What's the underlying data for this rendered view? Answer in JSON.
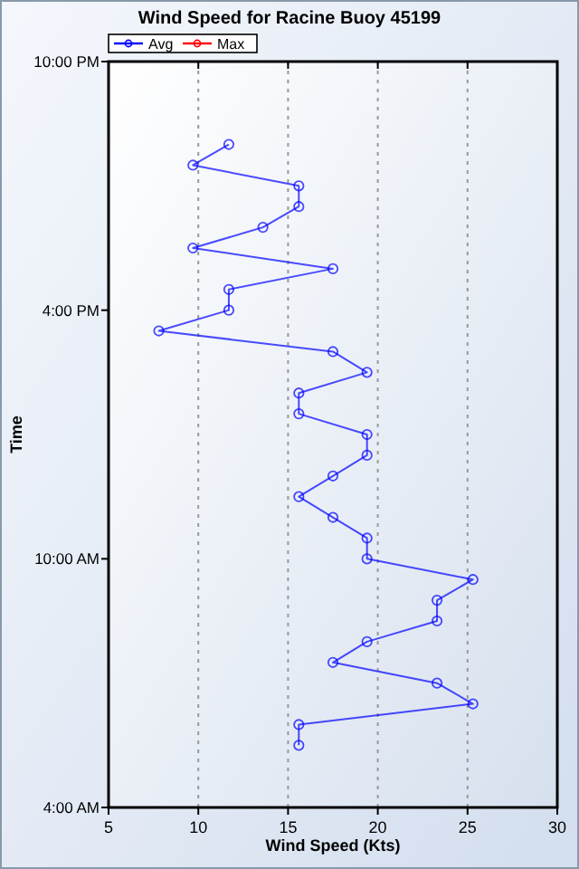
{
  "chart_data": {
    "type": "line",
    "title": "Wind Speed for Racine Buoy 45199",
    "xlabel": "Wind Speed (Kts)",
    "ylabel": "Time",
    "orientation": "horizontal",
    "x": [
      5.5,
      6,
      6.5,
      7,
      7.5,
      8,
      8.5,
      9,
      9.5,
      10,
      10.5,
      11,
      11.5,
      12,
      12.5,
      13,
      13.5,
      14,
      14.5,
      15,
      15.5,
      16,
      16.5,
      17,
      17.5,
      18,
      18.5,
      19,
      19.5,
      20
    ],
    "series": [
      {
        "name": "Avg",
        "color": "#0000ff",
        "values": [
          15.6,
          15.6,
          25.3,
          23.3,
          17.5,
          19.4,
          23.3,
          23.3,
          25.3,
          19.4,
          19.4,
          17.5,
          15.6,
          17.5,
          19.4,
          19.4,
          15.6,
          15.6,
          19.4,
          17.5,
          7.8,
          11.7,
          11.7,
          17.5,
          9.7,
          13.6,
          15.6,
          15.6,
          9.7,
          11.7
        ]
      },
      {
        "name": "Max",
        "color": "#ff0000",
        "values": [
          null,
          null,
          null,
          null,
          null,
          null,
          null,
          null,
          null,
          null,
          null,
          null,
          null,
          null,
          null,
          null,
          null,
          null,
          null,
          null,
          null,
          null,
          null,
          null,
          null,
          null,
          null,
          null,
          null,
          null
        ]
      }
    ],
    "xlim": [
      5,
      30
    ],
    "xticks": [
      5,
      10,
      15,
      20,
      25,
      30
    ],
    "ylim": [
      4,
      22
    ],
    "yticks": [
      {
        "value": 4,
        "label": "4:00 AM"
      },
      {
        "value": 10,
        "label": "10:00 AM"
      },
      {
        "value": 16,
        "label": "4:00 PM"
      },
      {
        "value": 22,
        "label": "10:00 PM"
      }
    ],
    "grid": "x",
    "legend": "top left",
    "marker": "circle",
    "line_style": "solid"
  }
}
